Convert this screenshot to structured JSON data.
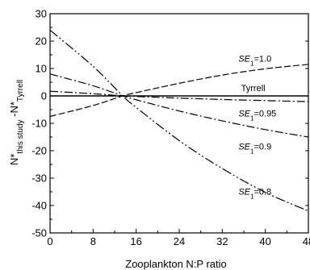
{
  "chart_data": {
    "type": "line",
    "xlabel": "Zooplankton N:P ratio",
    "ylabel_main": "N*",
    "ylabel_sub1": "this study",
    "ylabel_mid": " -N*",
    "ylabel_sub2": "Tyrrell",
    "xlim": [
      0,
      48
    ],
    "ylim": [
      -50,
      30
    ],
    "xticks": [
      0,
      8,
      16,
      24,
      32,
      40,
      48
    ],
    "yticks": [
      30,
      20,
      10,
      0,
      -10,
      -20,
      -30,
      -40,
      -50
    ],
    "grid": false,
    "series": [
      {
        "name": "Tyrrell",
        "dash": "solid",
        "x": [
          0,
          8,
          13.5,
          16,
          24,
          32,
          40,
          48
        ],
        "y": [
          0,
          0,
          0,
          0,
          0,
          0,
          0,
          0
        ],
        "label_pos": [
          35.5,
          1.7
        ]
      },
      {
        "name": "SE1=1.0",
        "label_prefix": "SE",
        "label_sub": "1",
        "label_suffix": "=1.0",
        "dash": "8,3",
        "x": [
          0,
          8,
          13.5,
          16,
          24,
          32,
          40,
          48
        ],
        "y": [
          -7.5,
          -3.5,
          0,
          1.2,
          4.6,
          7.6,
          9.9,
          11.5
        ],
        "label_pos": [
          35,
          12.5
        ]
      },
      {
        "name": "SE1=0.95",
        "label_prefix": "SE",
        "label_sub": "1",
        "label_suffix": "=0.95",
        "dash": "10,3,2,3",
        "x": [
          0,
          8,
          13.5,
          16,
          24,
          32,
          40,
          48
        ],
        "y": [
          1.7,
          0.8,
          0,
          -0.2,
          -0.8,
          -1.3,
          -1.7,
          -2.1
        ],
        "label_pos": [
          35,
          -7.5
        ]
      },
      {
        "name": "SE1=0.9",
        "label_prefix": "SE",
        "label_sub": "1",
        "label_suffix": "=0.9",
        "dash": "10,3,2,3",
        "x": [
          0,
          8,
          13.5,
          16,
          24,
          32,
          40,
          48
        ],
        "y": [
          8.0,
          3.7,
          0,
          -1.4,
          -5.5,
          -9.1,
          -12.3,
          -15.0
        ],
        "label_pos": [
          35,
          -19.5
        ]
      },
      {
        "name": "SE1=0.8",
        "label_prefix": "SE",
        "label_sub": "1",
        "label_suffix": "=0.8",
        "dash": "12,3,2,3,2,3",
        "x": [
          0,
          8,
          13.5,
          16,
          24,
          32,
          40,
          48
        ],
        "y": [
          24.0,
          10.8,
          0,
          -4.2,
          -16.3,
          -26.5,
          -35.2,
          -42.0
        ],
        "label_pos": [
          35,
          -36
        ]
      }
    ]
  }
}
